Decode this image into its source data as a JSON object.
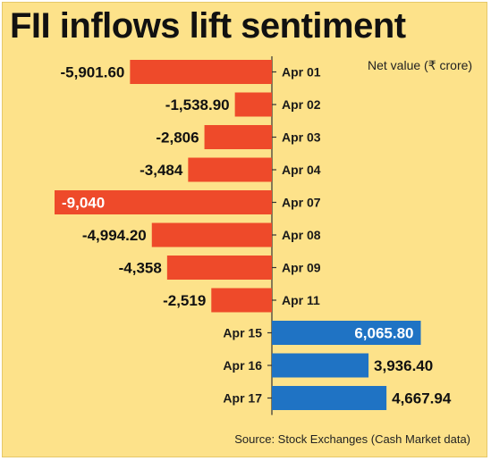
{
  "title": "FII inflows lift sentiment",
  "unit_label": "Net value (₹ crore)",
  "source": "Source: Stock Exchanges (Cash Market data)",
  "colors": {
    "background": "#fde28a",
    "negative_bar": "#ee4a2a",
    "positive_bar": "#1f73c4",
    "axis": "#333333",
    "text": "#111111",
    "inside_label": "#ffffff"
  },
  "chart_data": {
    "type": "bar",
    "orientation": "horizontal",
    "title": "FII inflows lift sentiment",
    "xlabel": "Net value (₹ crore)",
    "ylabel": "",
    "grid": false,
    "legend": "none",
    "xlim": [
      -9040,
      6065.8
    ],
    "categories": [
      "Apr 01",
      "Apr 02",
      "Apr 03",
      "Apr 04",
      "Apr 07",
      "Apr 08",
      "Apr 09",
      "Apr 11",
      "Apr 15",
      "Apr 16",
      "Apr 17"
    ],
    "values": [
      -5901.6,
      -1538.9,
      -2806,
      -3484,
      -9040,
      -4994.2,
      -4358,
      -2519,
      6065.8,
      3936.4,
      4667.94
    ],
    "value_labels": [
      "-5,901.60",
      "-1,538.90",
      "-2,806",
      "-3,484",
      "-9,040",
      "-4,994.20",
      "-4,358",
      "-2,519",
      "6,065.80",
      "3,936.40",
      "4,667.94"
    ],
    "inside_label": [
      false,
      false,
      false,
      false,
      true,
      false,
      false,
      false,
      true,
      false,
      false
    ]
  }
}
